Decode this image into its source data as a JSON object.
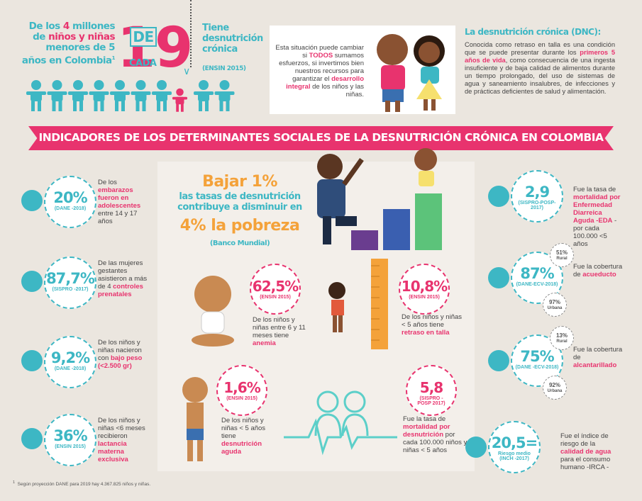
{
  "header": {
    "intro": [
      {
        "t": "De los "
      },
      {
        "t": "4",
        "hl": true
      },
      {
        "t": " millones de "
      },
      {
        "t": "niños y niñas",
        "hl": true
      },
      {
        "t": " menores de 5 años en Colombia"
      },
      {
        "t": "1",
        "sup": true
      }
    ],
    "big_one": "1",
    "de": "DE",
    "cada": "CADA",
    "big_nine": "9",
    "tiene": "Tiene desnutrición crónica",
    "tiene_source": "(ENSIN 2015)",
    "message": [
      {
        "t": "Esta situación puede cambiar si "
      },
      {
        "t": "TODOS",
        "hl": true
      },
      {
        "t": " sumamos esfuerzos, si invertimos bien nuestros recursos para garantizar el "
      },
      {
        "t": "desarrollo integral",
        "hl": true
      },
      {
        "t": " de los niños y las niñas."
      }
    ],
    "dnc_title": "La desnutrición crónica (DNC):",
    "dnc_text": [
      {
        "t": "Conocida como retraso en talla es una condición que se puede presentar durante los "
      },
      {
        "t": "primeros 5 años de vida",
        "hl": true
      },
      {
        "t": ", como consecuencia de una ingesta insuficiente y de baja calidad de alimentos durante un tiempo prolongado, del uso de sistemas de agua y saneamiento insalubres, de infecciones y de prácticas deficientes de salud y alimentación."
      }
    ]
  },
  "banner": "INDICADORES DE LOS DETERMINANTES SOCIALES DE LA DESNUTRICIÓN CRÓNICA EN COLOMBIA",
  "left": [
    {
      "value": "20%",
      "source": "(DANE -2018)",
      "text": [
        {
          "t": "De los "
        },
        {
          "t": "embarazos fueron en adolescentes",
          "hl": true
        },
        {
          "t": " entre 14 y 17 años"
        }
      ]
    },
    {
      "value": "87,7%",
      "source": "(SISPRO -2017)",
      "text": [
        {
          "t": "De las mujeres gestantes asistieron a más de 4 "
        },
        {
          "t": "controles prenatales",
          "hl": true
        }
      ]
    },
    {
      "value": "9,2%",
      "source": "(DANE -2018)",
      "text": [
        {
          "t": "De los niños y niñas nacieron con "
        },
        {
          "t": "bajo peso (<2.500 gr)",
          "hl": true
        }
      ]
    },
    {
      "value": "36%",
      "source": "(ENSIN 2015)",
      "text": [
        {
          "t": "De los niños y niñas <6 meses recibieron "
        },
        {
          "t": "lactancia materna exclusiva",
          "hl": true
        }
      ]
    }
  ],
  "center": {
    "bajar": "Bajar 1%",
    "line1": "las tasas de desnutrición contribuye a disminuir en",
    "pobreza": "4% la pobreza",
    "source": "(Banco Mundial)",
    "stats": [
      {
        "value": "62,5%",
        "source": "(ENSIN 2015)",
        "text": [
          {
            "t": "De los niños y niñas entre 6 y 11 meses tiene "
          },
          {
            "t": "anemia",
            "hl": true
          }
        ]
      },
      {
        "value": "10,8%",
        "source": "(ENSIN 2015)",
        "text": [
          {
            "t": "De los niños y niñas < 5 años tiene "
          },
          {
            "t": "retraso en talla",
            "hl": true
          }
        ]
      },
      {
        "value": "1,6%",
        "source": "(ENSIN 2015)",
        "text": [
          {
            "t": "De los niños y niñas < 5 años tiene "
          },
          {
            "t": "desnutrición aguda",
            "hl": true
          }
        ]
      },
      {
        "value": "5,8",
        "source": "(SISPRO -POSP 2017)",
        "text": [
          {
            "t": "Fue la tasa de "
          },
          {
            "t": "mortalidad por desnutrición",
            "hl": true
          },
          {
            "t": " por cada 100.000 niños y niñas < 5 años"
          }
        ]
      }
    ]
  },
  "right": [
    {
      "value": "2,9",
      "source": "(SISPRO-POSP-2017)",
      "text": [
        {
          "t": "Fue la tasa de "
        },
        {
          "t": "mortalidad por Enfermedad Diarreica Aguda -EDA",
          "hl": true
        },
        {
          "t": " - por cada 100.000 <5 años"
        }
      ]
    },
    {
      "value": "87%",
      "source": "(DANE-ECV-2018)",
      "text": [
        {
          "t": "Fue la cobertura de "
        },
        {
          "t": "acueducto",
          "hl": true
        }
      ],
      "rural": "51%",
      "rural_label": "Rural",
      "urbana": "97%",
      "urbana_label": "Urbana"
    },
    {
      "value": "75%",
      "source": "(DANE -ECV-2018)",
      "text": [
        {
          "t": "Fue la cobertura de "
        },
        {
          "t": "alcantarillado",
          "hl": true
        }
      ],
      "rural": "13%",
      "rural_label": "Rural",
      "urbana": "92%",
      "urbana_label": "Urbana"
    },
    {
      "value": "20,5=",
      "sublabel": "Riesgo medio",
      "source": "(INCH -2017)",
      "text": [
        {
          "t": "Fue el índice de riesgo de la "
        },
        {
          "t": "calidad de agua",
          "hl": true
        },
        {
          "t": " para el consumo humano -IRCA -"
        }
      ]
    }
  ],
  "footnote": {
    "mark": "1",
    "text": "Según proyección DANE para 2019 hay 4.367.825 niños y niñas."
  }
}
